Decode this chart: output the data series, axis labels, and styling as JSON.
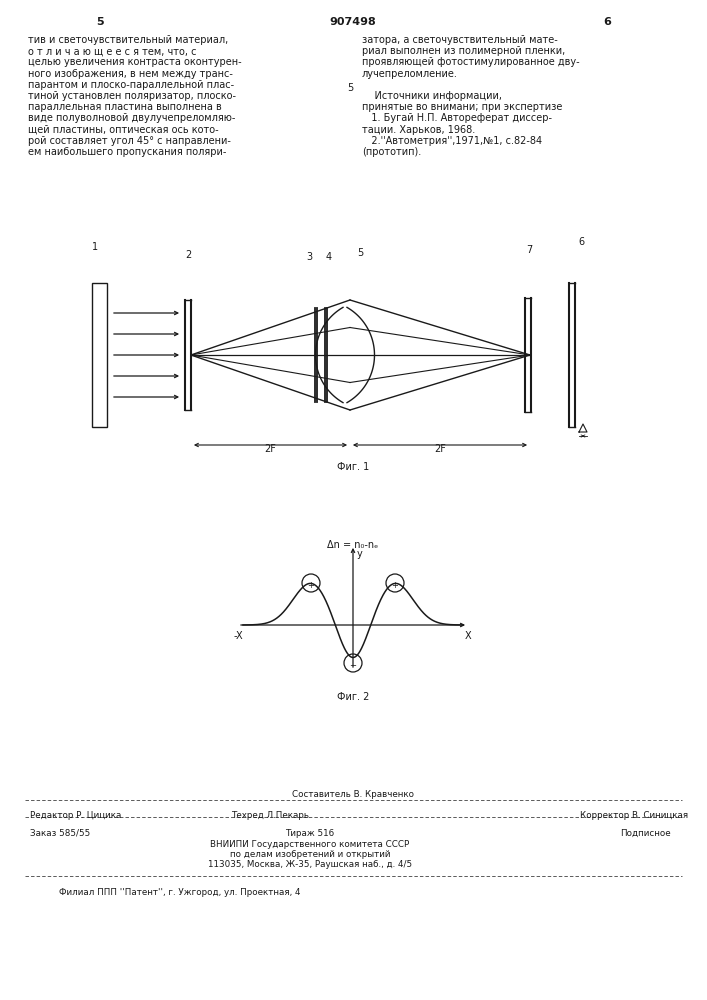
{
  "page_number_left": "5",
  "page_number_center": "907498",
  "page_number_right": "6",
  "left_column_text": [
    "тив и светочувствительный материал,",
    "о т л и ч а ю щ е е с я тем, что, с",
    "целью увеличения контраста оконтурен-",
    "ного изображения, в нем между транс-",
    "парантом и плоско-параллельной плас-",
    "тиной установлен поляризатор, плоско-",
    "параллельная пластина выполнена в",
    "виде полуволновой двулучепреломляю-",
    "щей пластины, оптическая ось кото-",
    "рой составляет угол 45° с направлени-",
    "ем наибольшего пропускания поляри-"
  ],
  "right_column_text": [
    "затора, а светочувствительный мате-",
    "риал выполнен из полимерной пленки,",
    "проявляющей фотостимулированное дву-",
    "лучепреломление.",
    "",
    "    Источники информации,",
    "принятые во внимани; при экспертизе",
    "   1. Бугай Н.П. Автореферат диссер-",
    "тации. Харьков, 1968.",
    "   2.''Автометрия'',1971,№1, с.82-84",
    "(прототип)."
  ],
  "ref_number_left": "5",
  "fig1_label": "Фиг. 1",
  "fig2_label": "Фиг. 2",
  "fig2_title": "Δn = n₀-nₑ",
  "fig2_y_axis_label": "y",
  "fig2_x_left": "-X",
  "fig2_x_right": "X",
  "bottom_editor": "Редактор Р. Цицика",
  "bottom_sestavitel": "Составитель В. Кравченко",
  "bottom_tech": "Техред Л.Пекарь",
  "bottom_corrector": "Корректор В. Синицкая",
  "bottom_order": "Заказ 585/55",
  "bottom_tirazh": "Тираж 516",
  "bottom_podpisnoe": "Подписное",
  "bottom_vniipii": "ВНИИПИ Государственного комитета СССР",
  "bottom_po": "по делам изобретений и открытий",
  "bottom_address": "113035, Москва, Ж-35, Раушская наб., д. 4/5",
  "bottom_filial": "Филиал ППП ''Патент'', г. Ужгород, ул. Проектная, 4",
  "bg_color": "#ffffff",
  "text_color": "#1a1a1a",
  "label_1": "1",
  "label_2": "2",
  "label_3": "3",
  "label_4": "4",
  "label_5": "5",
  "label_6": "6",
  "label_7": "7",
  "dim_2F_left": "2F",
  "dim_2F_right": "2F"
}
